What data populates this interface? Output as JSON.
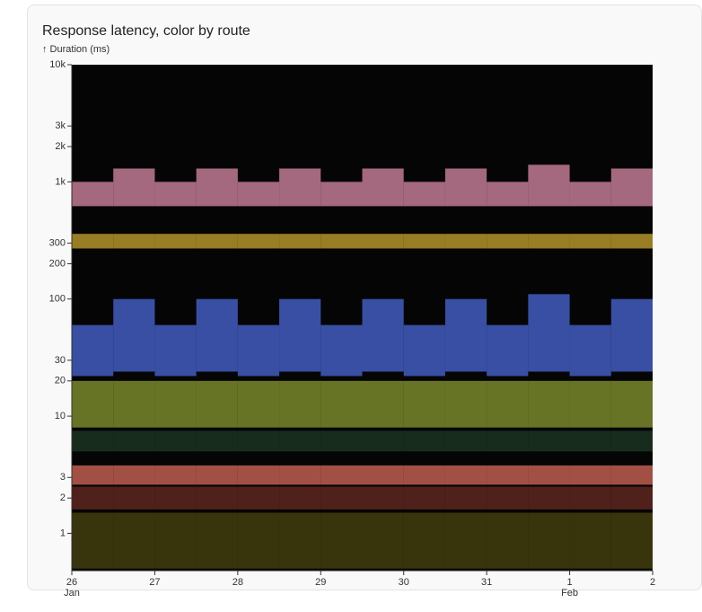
{
  "chart_data": {
    "type": "band-heatmap",
    "title": "Response latency, color by route",
    "y_label": "↑ Duration (ms)",
    "log_y": true,
    "ylim": [
      0.48,
      10000
    ],
    "yticks": [
      1,
      2,
      3,
      10,
      20,
      30,
      100,
      200,
      300,
      {
        "value": 1000,
        "label": "1k"
      },
      {
        "value": 2000,
        "label": "2k"
      },
      {
        "value": 3000,
        "label": "3k"
      },
      {
        "value": 10000,
        "label": "10k"
      }
    ],
    "xlim": [
      0,
      7
    ],
    "xticks": [
      {
        "value": 0,
        "label": "26",
        "sublabel": "Jan"
      },
      {
        "value": 1,
        "label": "27"
      },
      {
        "value": 2,
        "label": "28"
      },
      {
        "value": 3,
        "label": "29"
      },
      {
        "value": 4,
        "label": "30"
      },
      {
        "value": 5,
        "label": "31"
      },
      {
        "value": 6,
        "label": "1",
        "sublabel": "Feb"
      },
      {
        "value": 7,
        "label": "2"
      }
    ],
    "x": [
      0.25,
      0.75,
      1.25,
      1.75,
      2.25,
      2.75,
      3.25,
      3.75,
      4.25,
      4.75,
      5.25,
      5.75,
      6.25,
      6.75
    ],
    "series": [
      {
        "color": "#d98aa8",
        "low": [
          620,
          620,
          620,
          620,
          620,
          620,
          620,
          620,
          620,
          620,
          620,
          620,
          620,
          620
        ],
        "high": [
          1000,
          1300,
          1000,
          1300,
          1000,
          1300,
          1000,
          1300,
          1000,
          1300,
          1000,
          1400,
          1000,
          1300
        ]
      },
      {
        "color": "#c9a530",
        "low": [
          270,
          270,
          270,
          270,
          270,
          270,
          270,
          270,
          270,
          270,
          270,
          270,
          270,
          270
        ],
        "high": [
          360,
          360,
          360,
          360,
          360,
          360,
          360,
          360,
          360,
          360,
          360,
          360,
          360,
          360
        ]
      },
      {
        "color": "#4a68d8",
        "low": [
          22,
          24,
          22,
          24,
          22,
          24,
          22,
          24,
          22,
          24,
          22,
          24,
          22,
          24
        ],
        "high": [
          60,
          100,
          60,
          100,
          60,
          100,
          60,
          100,
          60,
          100,
          60,
          110,
          60,
          100
        ]
      },
      {
        "color": "#8a9a30",
        "low": [
          8,
          8,
          8,
          8,
          8,
          8,
          8,
          8,
          8,
          8,
          8,
          8,
          8,
          8
        ],
        "high": [
          20,
          20,
          20,
          20,
          20,
          20,
          20,
          20,
          20,
          20,
          20,
          20,
          20,
          20
        ]
      },
      {
        "color": "#1e3a25",
        "low": [
          5,
          5,
          5,
          5,
          5,
          5,
          5,
          5,
          5,
          5,
          5,
          5,
          5,
          5
        ],
        "high": [
          7.5,
          7.5,
          7.5,
          7.5,
          7.5,
          7.5,
          7.5,
          7.5,
          7.5,
          7.5,
          7.5,
          7.5,
          7.5,
          7.5
        ]
      },
      {
        "color": "#d86a5a",
        "low": [
          2.6,
          2.6,
          2.6,
          2.6,
          2.6,
          2.6,
          2.6,
          2.6,
          2.6,
          2.6,
          2.6,
          2.6,
          2.6,
          2.6
        ],
        "high": [
          3.8,
          3.8,
          3.8,
          3.8,
          3.8,
          3.8,
          3.8,
          3.8,
          3.8,
          3.8,
          3.8,
          3.8,
          3.8,
          3.8
        ]
      },
      {
        "color": "#6a2a22",
        "low": [
          1.6,
          1.6,
          1.6,
          1.6,
          1.6,
          1.6,
          1.6,
          1.6,
          1.6,
          1.6,
          1.6,
          1.6,
          1.6,
          1.6
        ],
        "high": [
          2.5,
          2.5,
          2.5,
          2.5,
          2.5,
          2.5,
          2.5,
          2.5,
          2.5,
          2.5,
          2.5,
          2.5,
          2.5,
          2.5
        ]
      },
      {
        "color": "#4a4510",
        "low": [
          0.5,
          0.5,
          0.5,
          0.5,
          0.5,
          0.5,
          0.5,
          0.5,
          0.5,
          0.5,
          0.5,
          0.5,
          0.5,
          0.5
        ],
        "high": [
          1.5,
          1.5,
          1.5,
          1.5,
          1.5,
          1.5,
          1.5,
          1.5,
          1.5,
          1.5,
          1.5,
          1.5,
          1.5,
          1.5
        ]
      }
    ]
  }
}
